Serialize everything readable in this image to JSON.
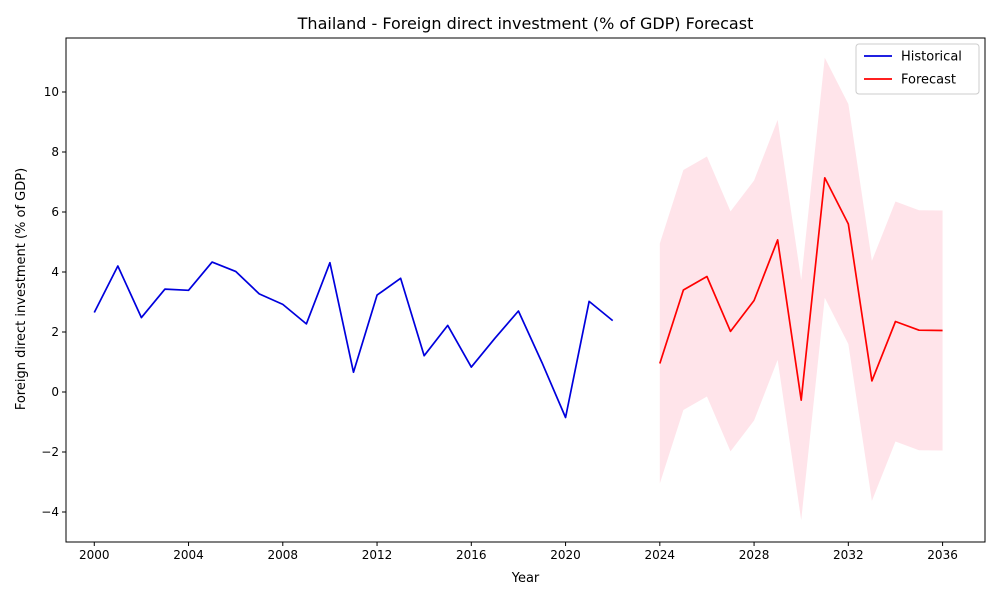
{
  "chart_data": {
    "type": "line",
    "title": "Thailand - Foreign direct investment (% of GDP) Forecast",
    "xlabel": "Year",
    "ylabel": "Foreign direct investment (% of GDP)",
    "xlim": [
      1998.8,
      2037.8
    ],
    "ylim": [
      -5.0,
      11.8
    ],
    "xticks": [
      2000,
      2004,
      2008,
      2012,
      2016,
      2020,
      2024,
      2028,
      2032,
      2036
    ],
    "yticks": [
      -4,
      -2,
      0,
      2,
      4,
      6,
      8,
      10
    ],
    "grid": false,
    "legend_position": "top-right",
    "series": [
      {
        "name": "Historical",
        "color": "#0000dd",
        "x": [
          2000,
          2001,
          2002,
          2003,
          2004,
          2005,
          2006,
          2007,
          2008,
          2009,
          2010,
          2011,
          2012,
          2013,
          2014,
          2015,
          2016,
          2017,
          2018,
          2019,
          2020,
          2021,
          2022
        ],
        "y": [
          2.65,
          4.2,
          2.48,
          3.43,
          3.39,
          4.33,
          4.02,
          3.27,
          2.92,
          2.27,
          4.31,
          0.66,
          3.23,
          3.79,
          1.21,
          2.22,
          0.83,
          1.79,
          2.7,
          0.98,
          -0.85,
          3.02,
          2.38
        ]
      },
      {
        "name": "Forecast",
        "color": "#ff0000",
        "x": [
          2024,
          2025,
          2026,
          2027,
          2028,
          2029,
          2030,
          2031,
          2032,
          2033,
          2034,
          2035,
          2036
        ],
        "y": [
          0.95,
          3.4,
          3.85,
          2.02,
          3.05,
          5.07,
          -0.27,
          7.14,
          5.6,
          0.37,
          2.35,
          2.06,
          2.05
        ],
        "lower": [
          -3.05,
          -0.6,
          -0.15,
          -1.98,
          -0.95,
          1.07,
          -4.27,
          3.14,
          1.6,
          -3.63,
          -1.65,
          -1.94,
          -1.95
        ],
        "upper": [
          4.95,
          7.4,
          7.85,
          6.02,
          7.05,
          9.07,
          3.73,
          11.14,
          9.6,
          4.37,
          6.35,
          6.06,
          6.05
        ],
        "band_color": "#ffe4ea"
      }
    ]
  }
}
